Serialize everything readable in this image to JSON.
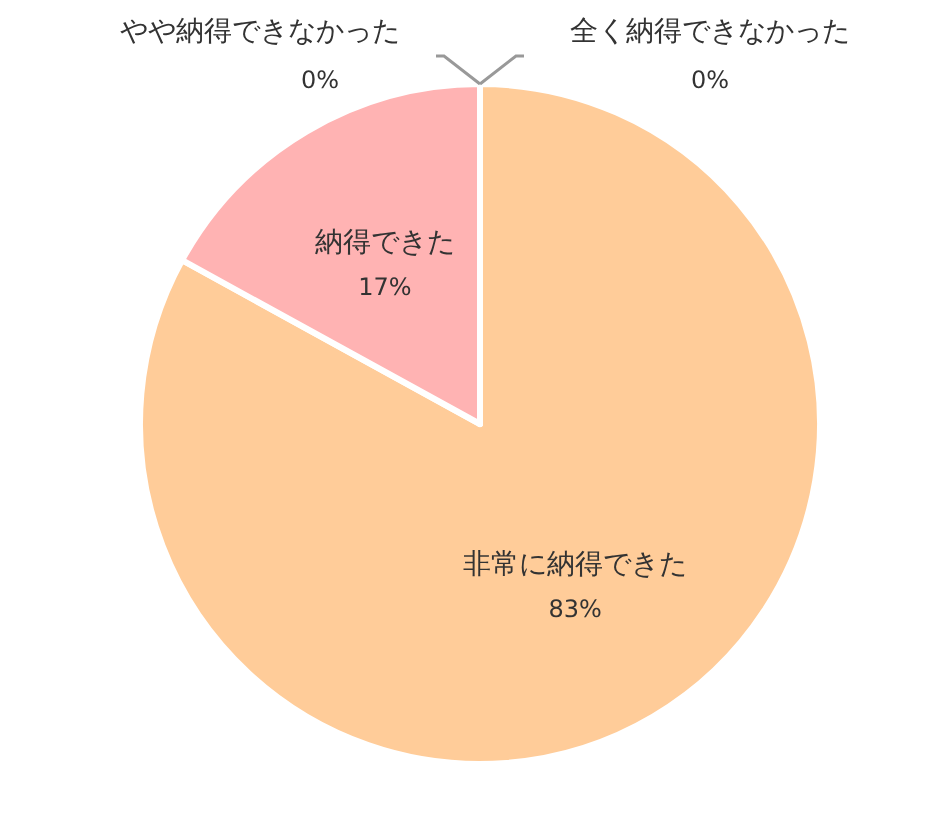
{
  "chart_data": {
    "type": "pie",
    "categories": [
      "非常に納得できた",
      "納得できた",
      "やや納得できなかった",
      "全く納得できなかった"
    ],
    "values": [
      83,
      17,
      0,
      0
    ],
    "value_labels": [
      "83%",
      "17%",
      "0%",
      "0%"
    ],
    "colors": [
      "#ffcc99",
      "#ffb3b3",
      "#ff9999",
      "#cccccc"
    ]
  }
}
